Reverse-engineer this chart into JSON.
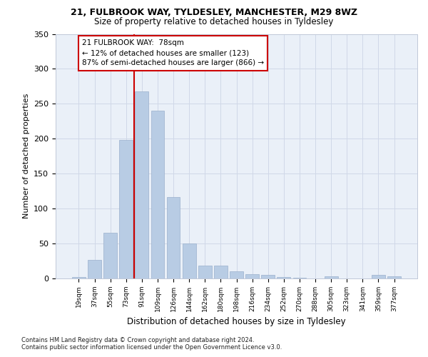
{
  "title_line1": "21, FULBROOK WAY, TYLDESLEY, MANCHESTER, M29 8WZ",
  "title_line2": "Size of property relative to detached houses in Tyldesley",
  "xlabel": "Distribution of detached houses by size in Tyldesley",
  "ylabel": "Number of detached properties",
  "categories": [
    "19sqm",
    "37sqm",
    "55sqm",
    "73sqm",
    "91sqm",
    "109sqm",
    "126sqm",
    "144sqm",
    "162sqm",
    "180sqm",
    "198sqm",
    "216sqm",
    "234sqm",
    "252sqm",
    "270sqm",
    "288sqm",
    "305sqm",
    "323sqm",
    "341sqm",
    "359sqm",
    "377sqm"
  ],
  "values": [
    2,
    27,
    65,
    198,
    268,
    240,
    117,
    50,
    18,
    18,
    10,
    6,
    5,
    2,
    1,
    0,
    3,
    0,
    0,
    5,
    3
  ],
  "bar_color": "#b8cce4",
  "bar_edge_color": "#9ab0cc",
  "vline_x": 3.5,
  "vline_color": "#cc0000",
  "annotation_text": "21 FULBROOK WAY:  78sqm\n← 12% of detached houses are smaller (123)\n87% of semi-detached houses are larger (866) →",
  "annotation_box_facecolor": "#ffffff",
  "annotation_box_edgecolor": "#cc0000",
  "ylim": [
    0,
    350
  ],
  "yticks": [
    0,
    50,
    100,
    150,
    200,
    250,
    300,
    350
  ],
  "grid_color": "#d0d8e8",
  "bg_color": "#eaf0f8",
  "footnote_line1": "Contains HM Land Registry data © Crown copyright and database right 2024.",
  "footnote_line2": "Contains public sector information licensed under the Open Government Licence v3.0."
}
